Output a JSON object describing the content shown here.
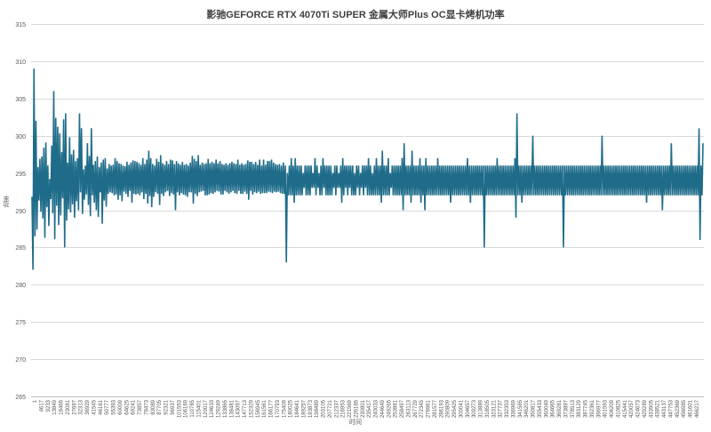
{
  "chart_data": {
    "type": "line",
    "title": "影驰GEFORCE RTX 4070Ti SUPER 金属大师Plus OC显卡烤机功率",
    "xlabel": "时间",
    "ylabel": "功率",
    "ylim": [
      265,
      315
    ],
    "yticks": [
      265,
      270,
      275,
      280,
      285,
      290,
      295,
      300,
      305,
      310,
      315
    ],
    "grid": true,
    "legend": "none",
    "line_color": "#1f6c8a",
    "x_tick_labels": [
      "1",
      "4617",
      "9233",
      "13849",
      "18465",
      "23081",
      "27697",
      "32313",
      "36929",
      "41545",
      "46161",
      "50777",
      "55393",
      "60009",
      "64625",
      "69241",
      "73857",
      "78473",
      "83089",
      "87705",
      "92321",
      "96937",
      "101553",
      "106169",
      "110785",
      "115401",
      "120017",
      "124633",
      "129249",
      "133865",
      "138481",
      "143097",
      "147713",
      "152329",
      "156945",
      "161561",
      "166177",
      "170793",
      "175409",
      "180025",
      "184641",
      "189257",
      "193873",
      "198489",
      "203105",
      "207721",
      "212337",
      "216953",
      "221569",
      "226185",
      "230801",
      "235417",
      "240033",
      "244649",
      "249265",
      "253881",
      "258497",
      "263113",
      "267729",
      "272345",
      "276961",
      "281577",
      "286193",
      "290809",
      "295425",
      "300041",
      "304657",
      "309273",
      "313889",
      "318505",
      "323121",
      "327737",
      "332353",
      "336969",
      "341585",
      "346201",
      "350817",
      "355433",
      "360049",
      "364665",
      "369281",
      "373897",
      "378513",
      "383129",
      "387745",
      "392361",
      "396977",
      "401593",
      "406209",
      "410825",
      "415441",
      "420057",
      "424673",
      "429289",
      "433905",
      "438521",
      "443137",
      "447753",
      "452369",
      "456985",
      "461601",
      "466217"
    ],
    "series": [
      {
        "values": [
          291.8,
          282.0,
          309.0,
          286.5,
          302.0,
          287.4,
          295.8,
          291.3,
          296.9,
          289.8,
          297.2,
          288.9,
          298.4,
          286.3,
          299.1,
          290.4,
          296.0,
          287.9,
          294.2,
          291.5,
          298.7,
          289.6,
          306.0,
          286.1,
          302.4,
          290.6,
          301.2,
          288.0,
          300.3,
          289.3,
          297.8,
          291.6,
          302.2,
          285.0,
          303.0,
          288.6,
          296.4,
          290.1,
          299.8,
          289.7,
          297.5,
          290.8,
          298.1,
          289.0,
          296.6,
          291.2,
          297.0,
          290.0,
          303.0,
          292.4,
          301.0,
          289.5,
          295.5,
          291.4,
          296.0,
          292.1,
          299.0,
          290.7,
          297.3,
          289.2,
          301.0,
          292.0,
          296.1,
          291.0,
          296.6,
          290.0,
          297.2,
          289.1,
          295.8,
          292.4,
          296.4,
          288.2,
          296.8,
          291.3,
          297.0,
          290.5,
          295.6,
          292.2,
          296.2,
          292.4,
          296.0,
          292.3,
          296.1,
          292.0,
          297.0,
          292.1,
          296.6,
          291.4,
          296.3,
          292.0,
          296.2,
          291.2,
          296.0,
          292.5,
          295.9,
          292.2,
          296.5,
          291.8,
          296.1,
          292.6,
          296.4,
          291.0,
          296.7,
          292.2,
          296.6,
          292.1,
          296.5,
          292.2,
          296.3,
          292.0,
          296.1,
          292.4,
          297.0,
          291.5,
          296.2,
          292.2,
          296.8,
          290.9,
          298.0,
          291.9,
          297.0,
          290.4,
          296.2,
          291.8,
          296.0,
          292.4,
          296.9,
          292.2,
          296.5,
          290.7,
          297.4,
          292.2,
          296.3,
          291.9,
          296.1,
          292.4,
          296.6,
          292.6,
          296.2,
          291.9,
          296.8,
          292.3,
          296.7,
          292.1,
          296.2,
          290.0,
          296.6,
          292.4,
          296.3,
          292.0,
          296.1,
          292.3,
          296.5,
          292.1,
          296.1,
          292.0,
          296.2,
          291.8,
          296.0,
          292.4,
          296.4,
          292.4,
          297.3,
          290.9,
          296.9,
          292.2,
          296.6,
          291.9,
          297.4,
          292.4,
          296.1,
          292.5,
          296.4,
          292.6,
          296.2,
          292.0,
          296.3,
          292.0,
          296.9,
          292.1,
          296.3,
          292.3,
          296.5,
          292.2,
          296.3,
          292.4,
          296.8,
          292.6,
          296.3,
          292.5,
          296.6,
          292.1,
          296.2,
          292.1,
          296.1,
          292.6,
          296.3,
          292.4,
          296.1,
          292.2,
          296.3,
          292.4,
          296.5,
          292.6,
          296.3,
          292.3,
          296.2,
          292.2,
          296.8,
          292.6,
          296.1,
          292.2,
          296.3,
          292.2,
          296.1,
          292.5,
          296.2,
          292.2,
          296.7,
          291.4,
          296.5,
          292.6,
          296.5,
          292.1,
          296.2,
          292.4,
          296.5,
          292.3,
          296.1,
          292.5,
          296.8,
          292.2,
          296.0,
          292.3,
          296.8,
          292.3,
          296.1,
          292.3,
          296.6,
          292.5,
          296.6,
          292.4,
          296.8,
          292.3,
          296.4,
          292.5,
          296.2,
          292.4,
          296.1,
          292.5,
          296.2,
          292.3,
          296.0,
          292.2,
          296.4,
          292.2,
          296.0,
          283.0,
          295.0,
          292.0,
          296.0,
          292.0,
          297.0,
          292.0,
          296.0,
          291.0,
          297.0,
          292.0,
          296.0,
          292.0,
          296.0,
          292.0,
          296.0,
          292.0,
          295.0,
          293.0,
          296.0,
          292.0,
          296.0,
          292.0,
          296.0,
          292.0,
          296.0,
          293.0,
          295.0,
          293.0,
          297.0,
          292.0,
          296.0,
          293.0,
          295.0,
          292.0,
          296.0,
          292.0,
          297.0,
          293.0,
          296.0,
          292.0,
          296.0,
          292.0,
          296.0,
          292.0,
          296.0,
          292.0,
          295.0,
          293.0,
          296.0,
          292.0,
          296.0,
          293.0,
          295.0,
          293.0,
          296.0,
          291.0,
          297.0,
          292.0,
          296.0,
          293.0,
          296.0,
          292.0,
          296.0,
          293.0,
          296.0,
          292.0,
          296.0,
          292.0,
          295.0,
          292.0,
          296.0,
          293.0,
          296.0,
          292.0,
          295.0,
          293.0,
          296.0,
          292.0,
          296.0,
          293.0,
          296.0,
          292.0,
          297.0,
          292.0,
          296.0,
          292.0,
          295.0,
          292.0,
          296.0,
          292.0,
          297.0,
          292.0,
          296.0,
          292.0,
          296.0,
          291.0,
          298.0,
          292.0,
          296.0,
          292.0,
          296.0,
          292.0,
          297.0,
          292.0,
          295.0,
          293.0,
          296.0,
          292.0,
          296.0,
          292.0,
          296.0,
          292.0,
          296.0,
          292.0,
          296.0,
          292.0,
          297.0,
          290.0,
          299.0,
          292.0,
          296.0,
          292.0,
          296.0,
          292.0,
          296.0,
          291.0,
          298.0,
          292.0,
          296.0,
          292.0,
          296.0,
          292.0,
          296.0,
          292.0,
          297.0,
          291.0,
          296.0,
          292.0,
          296.0,
          290.0,
          297.0,
          292.0,
          296.0,
          292.0,
          296.0,
          292.0,
          296.0,
          292.0,
          296.0,
          292.0,
          296.0,
          292.0,
          297.0,
          292.0,
          296.0,
          292.0,
          296.0,
          292.0,
          296.0,
          292.0,
          296.0,
          292.0,
          296.0,
          292.0,
          296.0,
          291.0,
          296.0,
          292.0,
          296.0,
          292.0,
          296.0,
          292.0,
          296.0,
          292.0,
          296.0,
          292.0,
          296.0,
          292.0,
          296.0,
          292.0,
          296.0,
          292.0,
          297.0,
          292.0,
          296.0,
          291.0,
          296.0,
          292.0,
          296.0,
          292.0,
          296.0,
          292.0,
          296.0,
          292.0,
          296.0,
          292.0,
          296.0,
          292.0,
          296.0,
          285.0,
          296.0,
          292.0,
          296.0,
          292.0,
          296.0,
          292.0,
          296.0,
          292.0,
          296.0,
          292.0,
          296.0,
          292.0,
          297.0,
          292.0,
          296.0,
          292.0,
          296.0,
          292.0,
          296.0,
          292.0,
          296.0,
          292.0,
          296.0,
          292.0,
          296.0,
          292.0,
          296.0,
          292.0,
          296.0,
          292.0,
          297.0,
          289.0,
          303.0,
          292.0,
          296.0,
          292.0,
          296.0,
          291.0,
          296.0,
          292.0,
          296.0,
          292.0,
          296.0,
          292.0,
          296.0,
          292.0,
          296.0,
          292.0,
          300.0,
          292.0,
          296.0,
          292.0,
          296.0,
          292.0,
          296.0,
          292.0,
          296.0,
          292.0,
          296.0,
          292.0,
          296.0,
          292.0,
          296.0,
          292.0,
          296.0,
          292.0,
          296.0,
          292.0,
          296.0,
          292.0,
          296.0,
          292.0,
          296.0,
          292.0,
          296.0,
          292.0,
          296.0,
          292.0,
          296.0,
          285.0,
          296.0,
          292.0,
          296.0,
          292.0,
          296.0,
          292.0,
          296.0,
          292.0,
          296.0,
          292.0,
          296.0,
          292.0,
          296.0,
          292.0,
          296.0,
          292.0,
          296.0,
          292.0,
          296.0,
          292.0,
          296.0,
          292.0,
          296.0,
          292.0,
          296.0,
          292.0,
          296.0,
          292.0,
          296.0,
          292.0,
          296.0,
          292.0,
          296.0,
          292.0,
          296.0,
          292.0,
          296.0,
          292.0,
          300.0,
          292.0,
          296.0,
          292.0,
          296.0,
          292.0,
          296.0,
          292.0,
          296.0,
          292.0,
          296.0,
          292.0,
          296.0,
          292.0,
          296.0,
          292.0,
          296.0,
          292.0,
          296.0,
          292.0,
          296.0,
          292.0,
          296.0,
          292.0,
          296.0,
          292.0,
          296.0,
          292.0,
          296.0,
          292.0,
          296.0,
          292.0,
          296.0,
          292.0,
          296.0,
          292.0,
          296.0,
          292.0,
          296.0,
          292.0,
          296.0,
          292.0,
          296.0,
          292.0,
          296.0,
          291.0,
          296.0,
          292.0,
          296.0,
          292.0,
          296.0,
          292.0,
          296.0,
          292.0,
          296.0,
          292.0,
          296.0,
          292.0,
          296.0,
          292.0,
          296.0,
          290.0,
          296.0,
          292.0,
          296.0,
          292.0,
          296.0,
          292.0,
          296.0,
          292.0,
          299.0,
          292.0,
          296.0,
          292.0,
          296.0,
          292.0,
          296.0,
          292.0,
          296.0,
          292.0,
          296.0,
          292.0,
          296.0,
          292.0,
          296.0,
          292.0,
          296.0,
          292.0,
          296.0,
          292.0,
          296.0,
          292.0,
          296.0,
          292.0,
          296.0,
          292.0,
          296.0,
          292.0,
          301.0,
          286.0,
          296.0,
          292.0,
          299.0
        ]
      }
    ]
  }
}
